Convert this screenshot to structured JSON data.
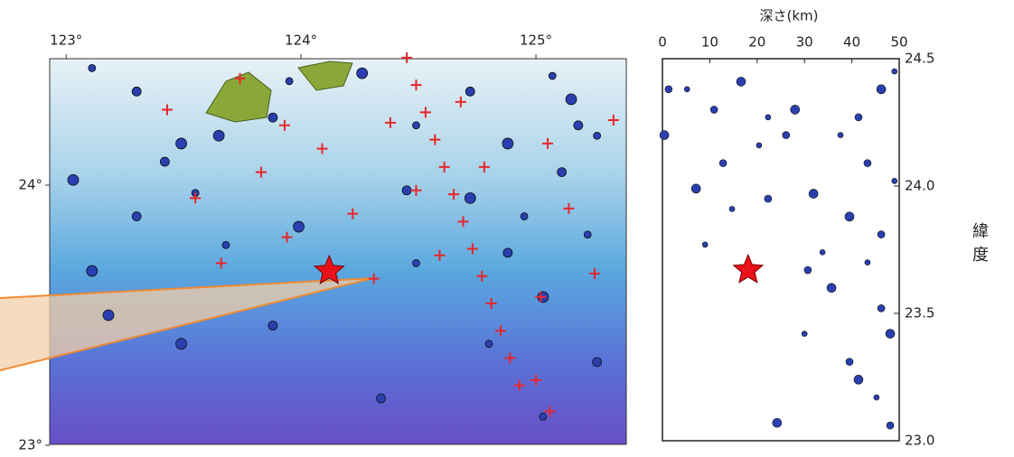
{
  "map": {
    "xlim": [
      122.93,
      125.4
    ],
    "ylim": [
      23,
      24.5
    ],
    "xticks": [
      {
        "value": 123,
        "label": "123°"
      },
      {
        "value": 124,
        "label": "124°"
      },
      {
        "value": 125,
        "label": "125°"
      }
    ],
    "yticks": [
      {
        "value": 24,
        "label": "24°"
      },
      {
        "value": 23,
        "label": "23°"
      }
    ],
    "events": {
      "color": "#2a3fb0",
      "lon": [
        123.11,
        123.3,
        123.49,
        123.55,
        123.42,
        123.65,
        123.95,
        123.88,
        124.26,
        124.49,
        124.72,
        124.88,
        125.07,
        125.18,
        125.15,
        125.26,
        124.45,
        124.72,
        124.95,
        125.11,
        123.99,
        123.68,
        123.3,
        123.11,
        124.49,
        124.88,
        125.03,
        125.22,
        123.88,
        123.49,
        124.8,
        125.26,
        123.18,
        125.03,
        124.34,
        123.03
      ],
      "lat": [
        24.45,
        24.36,
        24.16,
        23.97,
        24.09,
        24.19,
        24.4,
        24.26,
        24.43,
        24.23,
        24.36,
        24.16,
        24.42,
        24.23,
        24.33,
        24.19,
        23.98,
        23.95,
        23.88,
        24.05,
        23.84,
        23.77,
        23.88,
        23.67,
        23.7,
        23.74,
        23.57,
        23.81,
        23.46,
        23.39,
        23.39,
        23.32,
        23.5,
        23.11,
        23.18,
        24.02
      ]
    },
    "stations": {
      "color": "#e8262a",
      "lon": [
        123.43,
        123.74,
        123.93,
        124.09,
        123.83,
        123.55,
        124.22,
        123.94,
        123.66,
        124.31,
        124.38,
        124.49,
        124.59,
        124.68,
        124.78,
        125.05,
        125.33,
        125.14,
        125.25,
        125.02,
        125.0,
        125.06,
        124.45,
        124.49,
        124.53,
        124.57,
        124.61,
        124.65,
        124.69,
        124.73,
        124.77,
        124.81,
        124.85,
        124.89,
        124.93
      ],
      "lat": [
        24.29,
        24.41,
        24.23,
        24.14,
        24.05,
        23.95,
        23.89,
        23.8,
        23.7,
        23.64,
        24.24,
        23.98,
        23.73,
        24.32,
        24.07,
        24.16,
        24.25,
        23.91,
        23.66,
        23.57,
        23.25,
        23.13,
        24.49,
        24.385,
        24.28,
        24.175,
        24.07,
        23.965,
        23.86,
        23.755,
        23.65,
        23.545,
        23.44,
        23.335,
        23.23
      ]
    },
    "mainshock": {
      "lon": 124.12,
      "lat": 23.67,
      "color": "#e8121a"
    }
  },
  "section": {
    "xlabel": "深さ(km)",
    "ylabel": "緯度",
    "xlim": [
      0,
      50
    ],
    "ylim": [
      23,
      24.5
    ],
    "xticks": [
      0,
      10,
      20,
      30,
      40,
      50
    ],
    "yticks": [
      24.5,
      {
        "value": 24,
        "label": "24.0"
      },
      23.5,
      {
        "value": 23,
        "label": "23.0"
      }
    ],
    "events": {
      "color": "#2a3fb0",
      "depth": [
        5.2,
        10.9,
        16.6,
        22.3,
        26.1,
        28.0,
        20.4,
        12.8,
        7.1,
        14.7,
        22.3,
        31.9,
        37.6,
        41.4,
        46.2,
        49.0,
        43.3,
        39.5,
        33.8,
        30.7,
        35.7,
        43.3,
        46.2,
        48.1,
        30.0,
        39.5,
        41.4,
        45.2,
        48.1,
        24.2,
        9.0,
        1.3,
        0.4,
        49.0,
        46.2
      ],
      "lat": [
        24.38,
        24.3,
        24.41,
        24.27,
        24.2,
        24.3,
        24.16,
        24.09,
        23.99,
        23.91,
        23.95,
        23.97,
        24.2,
        24.27,
        24.38,
        24.45,
        24.09,
        23.88,
        23.74,
        23.67,
        23.6,
        23.7,
        23.52,
        23.42,
        23.42,
        23.31,
        23.24,
        23.17,
        23.06,
        23.07,
        23.77,
        24.38,
        24.2,
        24.02,
        23.81
      ]
    },
    "mainshock": {
      "depth": 18.1,
      "lat": 23.67,
      "color": "#e8121a"
    }
  }
}
